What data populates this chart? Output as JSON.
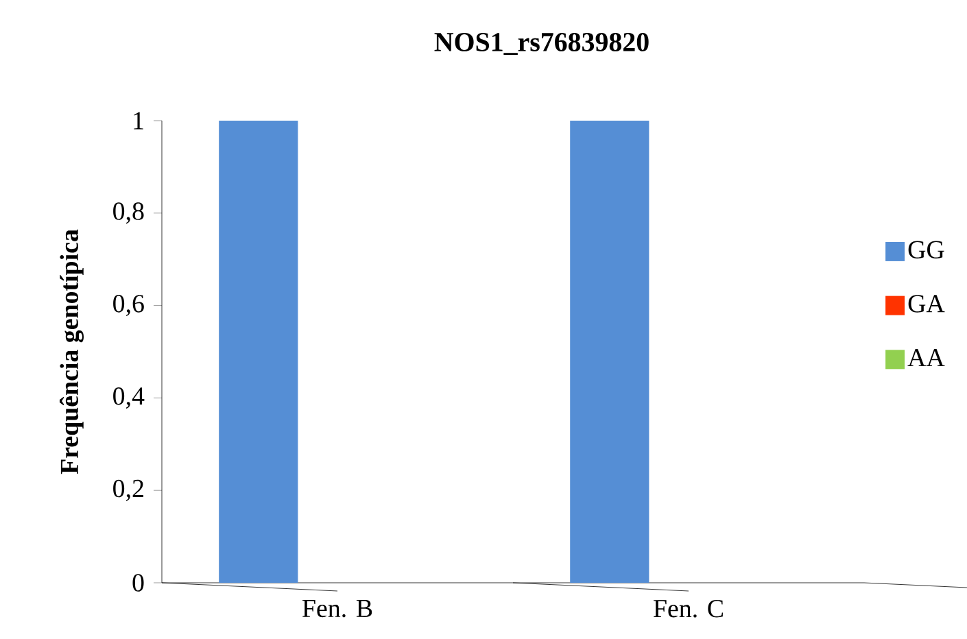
{
  "chart_data": {
    "type": "bar",
    "title": "NOS1_rs76839820",
    "ylabel": "Frequência genotípica",
    "categories": [
      "Fen. B",
      "Fen. C"
    ],
    "series": [
      {
        "name": "GG",
        "color": "#558ed5",
        "values": [
          1,
          1
        ]
      },
      {
        "name": "GA",
        "color": "#ff3300",
        "values": [
          0,
          0
        ]
      },
      {
        "name": "AA",
        "color": "#92d050",
        "values": [
          0,
          0
        ]
      }
    ],
    "ylim": [
      0,
      1
    ],
    "yticks": [
      0,
      {
        "value": 0.2,
        "label": "0,2"
      },
      {
        "value": 0.4,
        "label": "0,4"
      },
      {
        "value": 0.6,
        "label": "0,6"
      },
      {
        "value": 0.8,
        "label": "0,8"
      },
      1
    ],
    "grid": false,
    "legend": "right"
  }
}
